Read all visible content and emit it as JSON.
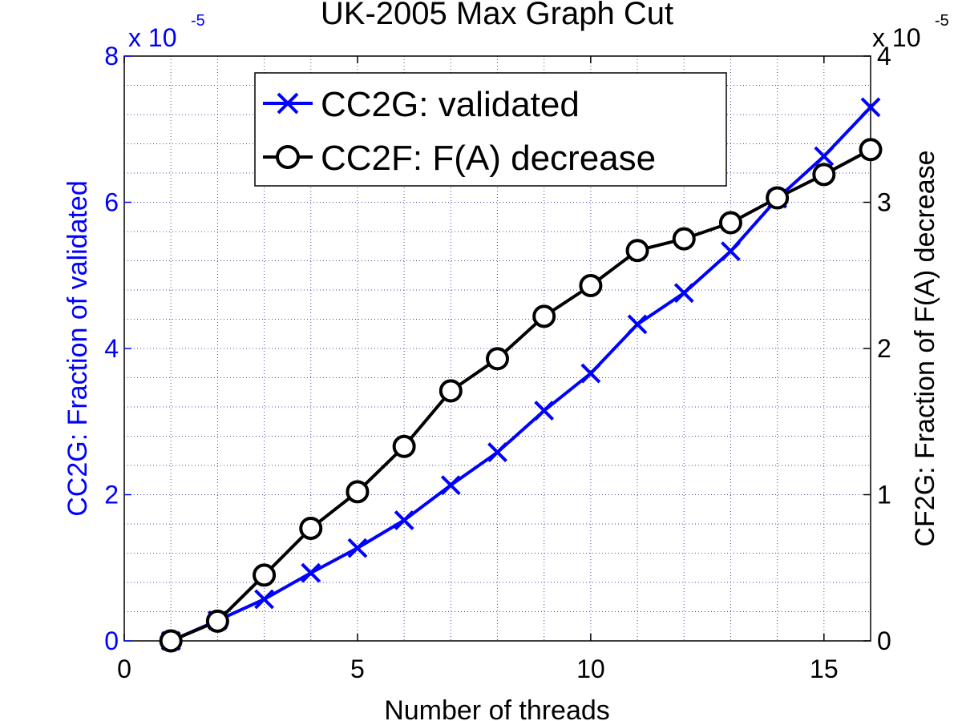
{
  "chart_data": {
    "type": "line",
    "title": "UK-2005 Max Graph Cut",
    "xlabel": "Number of threads",
    "ylabel_left": "CC2G: Fraction of validated",
    "ylabel_right": "CF2G: Fraction of F(A) decrease",
    "xlim": [
      0,
      16
    ],
    "ylim_left": [
      0,
      8
    ],
    "ylim_right": [
      0,
      4
    ],
    "x_ticks": [
      "0",
      "5",
      "10",
      "15"
    ],
    "y_ticks_left": [
      "0",
      "2",
      "4",
      "6",
      "8"
    ],
    "y_ticks_right": [
      "0",
      "1",
      "2",
      "3",
      "4"
    ],
    "exponent_left": {
      "base": "x 10",
      "power": "-5"
    },
    "exponent_right": {
      "base": "x 10",
      "power": "-5"
    },
    "grid": true,
    "legend_position": "top-left",
    "series": [
      {
        "name": "CC2G: validated",
        "axis": "left",
        "color": "#0000ff",
        "marker": "x",
        "x": [
          1,
          2,
          3,
          4,
          5,
          6,
          7,
          8,
          9,
          10,
          11,
          12,
          13,
          14,
          15,
          16
        ],
        "y": [
          0,
          0.28,
          0.57,
          0.93,
          1.27,
          1.65,
          2.13,
          2.58,
          3.15,
          3.66,
          4.33,
          4.76,
          5.33,
          6.05,
          6.63,
          7.3
        ]
      },
      {
        "name": "CC2F: F(A) decrease",
        "axis": "right",
        "color": "#000000",
        "marker": "o",
        "x": [
          1,
          2,
          3,
          4,
          5,
          6,
          7,
          8,
          9,
          10,
          11,
          12,
          13,
          14,
          15,
          16
        ],
        "y": [
          0,
          0.135,
          0.45,
          0.77,
          1.02,
          1.33,
          1.71,
          1.93,
          2.22,
          2.43,
          2.67,
          2.75,
          2.86,
          3.03,
          3.19,
          3.36
        ]
      }
    ]
  }
}
